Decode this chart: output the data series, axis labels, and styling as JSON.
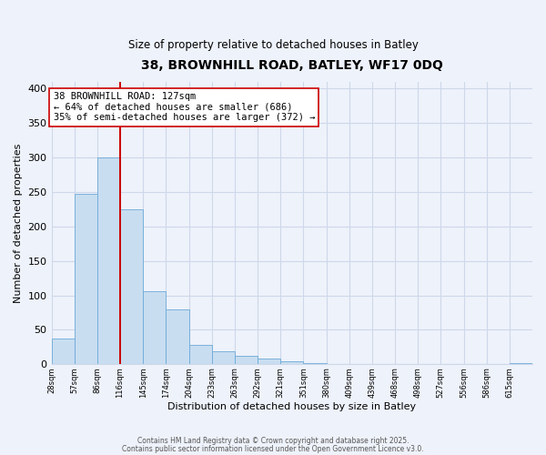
{
  "title": "38, BROWNHILL ROAD, BATLEY, WF17 0DQ",
  "subtitle": "Size of property relative to detached houses in Batley",
  "xlabel": "Distribution of detached houses by size in Batley",
  "ylabel": "Number of detached properties",
  "bar_labels": [
    "28sqm",
    "57sqm",
    "86sqm",
    "116sqm",
    "145sqm",
    "174sqm",
    "204sqm",
    "233sqm",
    "263sqm",
    "292sqm",
    "321sqm",
    "351sqm",
    "380sqm",
    "409sqm",
    "439sqm",
    "468sqm",
    "498sqm",
    "527sqm",
    "556sqm",
    "586sqm",
    "615sqm"
  ],
  "bar_values": [
    38,
    248,
    300,
    225,
    106,
    79,
    28,
    19,
    12,
    8,
    5,
    2,
    1,
    1,
    0,
    0,
    0,
    0,
    0,
    0,
    2
  ],
  "bar_color": "#c8ddf0",
  "bar_edgecolor": "#6baad8",
  "vline_x": 3,
  "vline_color": "#cc0000",
  "annotation_text": "38 BROWNHILL ROAD: 127sqm\n← 64% of detached houses are smaller (686)\n35% of semi-detached houses are larger (372) →",
  "ylim": [
    0,
    410
  ],
  "yticks": [
    0,
    50,
    100,
    150,
    200,
    250,
    300,
    350,
    400
  ],
  "grid_color": "#cdd8ea",
  "background_color": "#eef2fa",
  "footnote1": "Contains HM Land Registry data © Crown copyright and database right 2025.",
  "footnote2": "Contains public sector information licensed under the Open Government Licence v3.0."
}
